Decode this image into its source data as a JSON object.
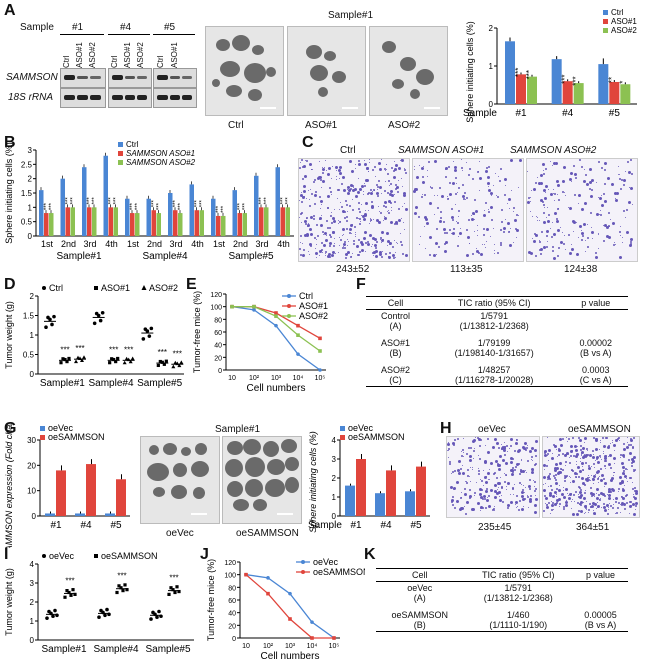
{
  "panels": {
    "A": {
      "label": "A",
      "blot": {
        "sample_label": "Sample",
        "samples": [
          "#1",
          "#4",
          "#5"
        ],
        "lanes": [
          "Ctrl",
          "ASO#1",
          "ASO#2"
        ],
        "lanes_short": [
          "Ctrl",
          "ASO#1"
        ],
        "row_labels": [
          "SAMMSON",
          "18S rRNA"
        ]
      },
      "micro": {
        "title": "Sample#1",
        "captions": [
          "Ctrl",
          "ASO#1",
          "ASO#2"
        ]
      }
    },
    "B": {
      "label": "B"
    },
    "C": {
      "label": "C",
      "captions": [
        "Ctrl",
        "SAMMSON ASO#1",
        "SAMMSON ASO#2"
      ],
      "values": [
        "243±52",
        "113±35",
        "124±38"
      ]
    },
    "D": {
      "label": "D"
    },
    "E": {
      "label": "E"
    },
    "F": {
      "label": "F",
      "headers": [
        "Cell",
        "TIC ratio (95% CI)",
        "p value"
      ],
      "rows": [
        {
          "cell": "Control",
          "cell2": "(A)",
          "ratio": "1/5791",
          "ci": "(1/13812-1/2368)",
          "p": "",
          "p2": ""
        },
        {
          "cell": "ASO#1",
          "cell2": "(B)",
          "ratio": "1/79199",
          "ci": "(1/198140-1/31657)",
          "p": "0.00002",
          "p2": "(B vs A)"
        },
        {
          "cell": "ASO#2",
          "cell2": "(C)",
          "ratio": "1/48257",
          "ci": "(1/116278-1/20028)",
          "p": "0.0003",
          "p2": "(C vs A)"
        }
      ]
    },
    "G": {
      "label": "G",
      "micro": {
        "title": "Sample#1",
        "captions": [
          "oeVec",
          "oeSAMMSON"
        ]
      }
    },
    "H": {
      "label": "H",
      "captions": [
        "oeVec",
        "oeSAMMSON"
      ],
      "values": [
        "235±45",
        "364±51"
      ]
    },
    "I": {
      "label": "I"
    },
    "J": {
      "label": "J"
    },
    "K": {
      "label": "K",
      "headers": [
        "Cell",
        "TIC ratio (95% CI)",
        "p value"
      ],
      "rows": [
        {
          "cell": "oeVec",
          "cell2": "(A)",
          "ratio": "1/5791",
          "ci": "(1/13812-1/2368)",
          "p": "",
          "p2": ""
        },
        {
          "cell": "oeSAMMSON",
          "cell2": "(B)",
          "ratio": "1/460",
          "ci": "(1/1110-1/190)",
          "p": "0.00005",
          "p2": "(B vs A)"
        }
      ]
    }
  },
  "chart_data": [
    {
      "id": "A-bar",
      "type": "bar",
      "ylabel": "Sphere initiating cells (%)",
      "xlabel": "Sample",
      "categories": [
        "#1",
        "#4",
        "#5"
      ],
      "ylim": [
        0,
        2
      ],
      "yticks": [
        0,
        1,
        2
      ],
      "series": [
        {
          "name": "Ctrl",
          "color": "#4a86d4",
          "values": [
            1.65,
            1.18,
            1.05
          ],
          "err": [
            0.1,
            0.08,
            0.15
          ]
        },
        {
          "name": "ASO#1",
          "color": "#e0453c",
          "values": [
            0.78,
            0.6,
            0.58
          ],
          "err": [
            0.05,
            0.05,
            0.05
          ]
        },
        {
          "name": "ASO#2",
          "color": "#8cc152",
          "values": [
            0.72,
            0.55,
            0.52
          ],
          "err": [
            0.05,
            0.05,
            0.05
          ]
        }
      ],
      "annotations": [
        "***",
        "**",
        "*"
      ]
    },
    {
      "id": "B-bar",
      "type": "bar",
      "ylabel": "Sphere initiating cells (%)",
      "groups": [
        "Sample#1",
        "Sample#4",
        "Sample#5"
      ],
      "categories": [
        "1st",
        "2nd",
        "3rd",
        "4th",
        "1st",
        "2nd",
        "3rd",
        "4th",
        "1st",
        "2nd",
        "3rd",
        "4th"
      ],
      "ylim": [
        0,
        3
      ],
      "yticks": [
        0,
        0.5,
        1,
        1.5,
        2,
        2.5,
        3
      ],
      "series": [
        {
          "name": "Ctrl",
          "color": "#4a86d4",
          "values": [
            1.6,
            2.0,
            2.4,
            2.8,
            1.3,
            1.3,
            1.5,
            1.8,
            1.3,
            1.6,
            2.1,
            2.4
          ]
        },
        {
          "name": "SAMMSON ASO#1",
          "color": "#e0453c",
          "values": [
            0.8,
            1.0,
            1.0,
            1.0,
            0.8,
            0.9,
            0.9,
            0.9,
            0.7,
            0.8,
            1.0,
            1.0
          ]
        },
        {
          "name": "SAMMSON ASO#2",
          "color": "#8cc152",
          "values": [
            0.8,
            1.0,
            1.0,
            1.0,
            0.8,
            0.8,
            0.8,
            0.9,
            0.7,
            0.8,
            1.0,
            1.0
          ]
        }
      ],
      "annotation": "***"
    },
    {
      "id": "D-scatter",
      "type": "scatter",
      "ylabel": "Tumor weight (g)",
      "groups": [
        "Sample#1",
        "Sample#4",
        "Sample#5"
      ],
      "ylim": [
        0,
        2
      ],
      "yticks": [
        0,
        0.5,
        1,
        1.5,
        2
      ],
      "series": [
        {
          "name": "Ctrl",
          "means": [
            1.35,
            1.45,
            1.05
          ]
        },
        {
          "name": "ASO#1",
          "means": [
            0.35,
            0.35,
            0.28
          ]
        },
        {
          "name": "ASO#2",
          "means": [
            0.38,
            0.35,
            0.25
          ]
        }
      ],
      "annotation": "***"
    },
    {
      "id": "E-line",
      "type": "line",
      "ylabel": "Tumor-free mice (%)",
      "xlabel": "Cell numbers",
      "x": [
        "10",
        "10²",
        "10³",
        "10⁴",
        "10⁵"
      ],
      "ylim": [
        0,
        120
      ],
      "yticks": [
        0,
        20,
        40,
        60,
        80,
        100,
        120
      ],
      "series": [
        {
          "name": "Ctrl",
          "color": "#4a86d4",
          "values": [
            100,
            95,
            70,
            25,
            0
          ]
        },
        {
          "name": "ASO#1",
          "color": "#e0453c",
          "values": [
            100,
            100,
            90,
            70,
            50
          ]
        },
        {
          "name": "ASO#2",
          "color": "#8cc152",
          "values": [
            100,
            100,
            85,
            55,
            30
          ]
        }
      ]
    },
    {
      "id": "G-bar",
      "type": "bar",
      "ylabel": "SAMMSON expression (Fold change)",
      "categories": [
        "#1",
        "#4",
        "#5"
      ],
      "ylim": [
        0,
        30
      ],
      "yticks": [
        0,
        10,
        20,
        30
      ],
      "series": [
        {
          "name": "oeVec",
          "color": "#4a86d4",
          "values": [
            1,
            1,
            1
          ]
        },
        {
          "name": "oeSAMMSON",
          "color": "#e0453c",
          "values": [
            18,
            20.5,
            14.5
          ]
        }
      ]
    },
    {
      "id": "G-bar2",
      "type": "bar",
      "ylabel": "Sphere initiating cells (%)",
      "xlabel": "Sample",
      "categories": [
        "#1",
        "#4",
        "#5"
      ],
      "ylim": [
        0,
        4
      ],
      "yticks": [
        0,
        1,
        2,
        3,
        4
      ],
      "series": [
        {
          "name": "oeVec",
          "color": "#4a86d4",
          "values": [
            1.6,
            1.2,
            1.3
          ]
        },
        {
          "name": "oeSAMMSON",
          "color": "#e0453c",
          "values": [
            3.0,
            2.4,
            2.6
          ]
        }
      ]
    },
    {
      "id": "I-scatter",
      "type": "scatter",
      "ylabel": "Tumor weight (g)",
      "groups": [
        "Sample#1",
        "Sample#4",
        "Sample#5"
      ],
      "ylim": [
        0,
        4
      ],
      "yticks": [
        0,
        1,
        2,
        3,
        4
      ],
      "series": [
        {
          "name": "oeVec",
          "means": [
            1.35,
            1.4,
            1.3
          ]
        },
        {
          "name": "oeSAMMSON",
          "means": [
            2.45,
            2.7,
            2.6
          ]
        }
      ],
      "annotation": "***"
    },
    {
      "id": "J-line",
      "type": "line",
      "ylabel": "Tumor-free mice (%)",
      "xlabel": "Cell numbers",
      "x": [
        "10",
        "10²",
        "10³",
        "10⁴",
        "10⁵"
      ],
      "ylim": [
        0,
        120
      ],
      "yticks": [
        0,
        20,
        40,
        60,
        80,
        100,
        120
      ],
      "series": [
        {
          "name": "oeVec",
          "color": "#4a86d4",
          "values": [
            100,
            95,
            70,
            25,
            0
          ]
        },
        {
          "name": "oeSAMMSON",
          "color": "#e0453c",
          "values": [
            100,
            70,
            30,
            0,
            0
          ]
        }
      ]
    }
  ]
}
